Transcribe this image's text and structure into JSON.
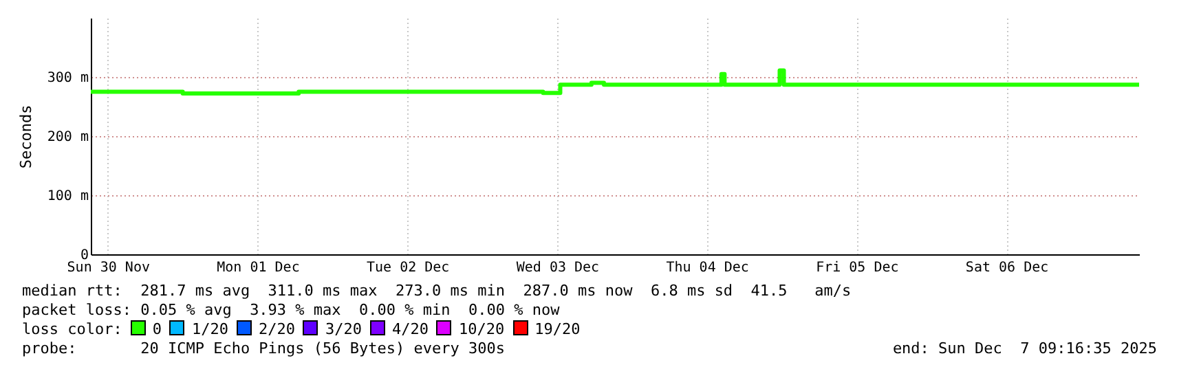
{
  "chart_data": {
    "type": "step",
    "ylabel": "Seconds",
    "x": [
      "2025-11-30T09:16",
      "2025-12-01T00:00",
      "2025-12-01T18:35",
      "2025-12-03T09:45",
      "2025-12-03T12:30",
      "2025-12-03T17:30",
      "2025-12-03T19:30",
      "2025-12-04T14:20",
      "2025-12-04T14:50",
      "2025-12-04T23:40",
      "2025-12-05T00:20",
      "2025-12-07T09:16"
    ],
    "series": [
      {
        "name": "0",
        "color": "#26ff00",
        "values": [
          275,
          272,
          275,
          273,
          287,
          290,
          287,
          305,
          287,
          311,
          287,
          287
        ]
      },
      {
        "name": "1/20",
        "color": "#00b8ff",
        "values": [
          null,
          null,
          null,
          null,
          null,
          null,
          null,
          null,
          null,
          null,
          null,
          null
        ]
      },
      {
        "name": "2/20",
        "color": "#0059ff",
        "values": [
          null,
          null,
          null,
          null,
          null,
          null,
          null,
          null,
          null,
          null,
          null,
          null
        ]
      },
      {
        "name": "3/20",
        "color": "#5e00ff",
        "values": [
          null,
          null,
          null,
          null,
          null,
          null,
          null,
          null,
          null,
          null,
          null,
          null
        ]
      },
      {
        "name": "4/20",
        "color": "#7e00ff",
        "values": [
          null,
          null,
          null,
          null,
          null,
          null,
          null,
          null,
          null,
          null,
          null,
          null
        ]
      },
      {
        "name": "10/20",
        "color": "#dd00ff",
        "values": [
          null,
          null,
          null,
          null,
          null,
          null,
          null,
          null,
          null,
          null,
          null,
          null
        ]
      },
      {
        "name": "19/20",
        "color": "#ff0000",
        "values": [
          null,
          null,
          null,
          null,
          null,
          null,
          null,
          null,
          null,
          null,
          null,
          null
        ]
      }
    ],
    "legend": "bottom",
    "legend_title": "loss color:",
    "grid": true,
    "xlim": [
      "2025-11-30T09:16",
      "2025-12-07T09:16"
    ],
    "xticks": [
      {
        "value": "2025-11-30T12:00",
        "label": "Sun 30 Nov"
      },
      {
        "value": "2025-12-01T12:00",
        "label": "Mon 01 Dec"
      },
      {
        "value": "2025-12-02T12:00",
        "label": "Tue 02 Dec"
      },
      {
        "value": "2025-12-03T12:00",
        "label": "Wed 03 Dec"
      },
      {
        "value": "2025-12-04T12:00",
        "label": "Thu 04 Dec"
      },
      {
        "value": "2025-12-05T12:00",
        "label": "Fri 05 Dec"
      },
      {
        "value": "2025-12-06T12:00",
        "label": "Sat 06 Dec"
      }
    ],
    "ylim": [
      0,
      400
    ],
    "yticks": [
      0,
      {
        "value": 100,
        "label": "100 m"
      },
      {
        "value": 200,
        "label": "200 m"
      },
      {
        "value": 300,
        "label": "300 m"
      }
    ],
    "annotations": [
      "median rtt:  281.7 ms avg  311.0 ms max  273.0 ms min  287.0 ms now  6.8 ms sd  41.5   am/s",
      "packet loss: 0.05 % avg  3.93 % max  0.00 % min  0.00 % now",
      "probe:       20 ICMP Echo Pings (56 Bytes) every 300s",
      "end: Sun Dec  7 09:16:35 2025"
    ]
  }
}
